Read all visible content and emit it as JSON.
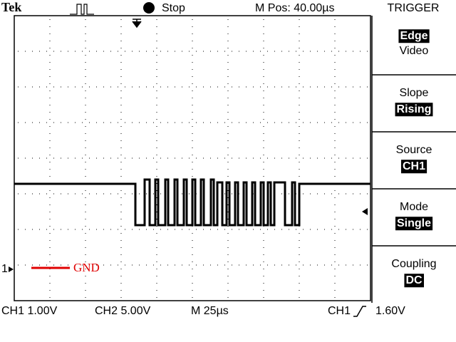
{
  "header": {
    "brand": "Tek",
    "status": "Stop",
    "position": "M Pos: 40.00µs"
  },
  "menu": {
    "title": "TRIGGER",
    "items": [
      {
        "options": [
          "Edge",
          "Video"
        ]
      },
      {
        "label": "Slope",
        "value": "Rising"
      },
      {
        "label": "Source",
        "value": "CH1"
      },
      {
        "label": "Mode",
        "value": "Single"
      },
      {
        "label": "Coupling",
        "value": "DC"
      }
    ]
  },
  "markers": {
    "channel": "1",
    "ground": "GND"
  },
  "footer": {
    "ch1": "CH1 1.00V",
    "ch2": "CH2 5.00V",
    "timebase": "M 25µs",
    "trigger_source": "CH1",
    "trigger_level": "1.60V"
  }
}
